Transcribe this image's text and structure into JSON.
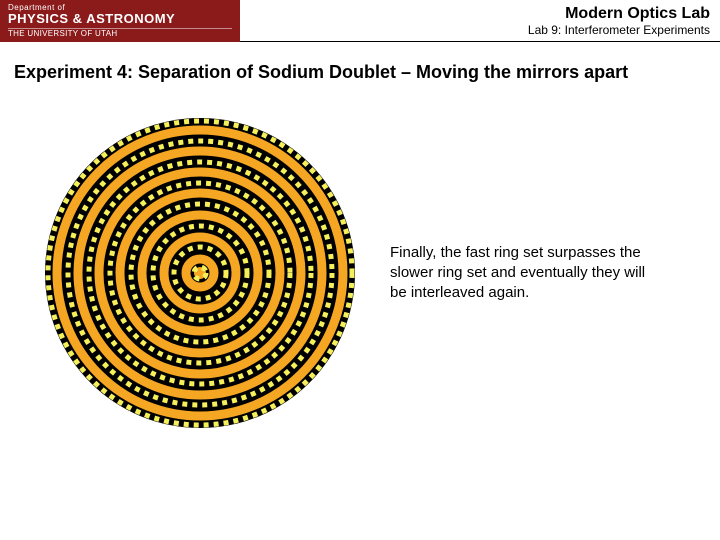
{
  "header": {
    "logo_dept": "Department of",
    "logo_main": "PHYSICS & ASTRONOMY",
    "logo_uni": "THE UNIVERSITY OF UTAH",
    "lab_title": "Modern Optics Lab",
    "lab_sub": "Lab 9: Interferometer Experiments"
  },
  "slide": {
    "title": "Experiment 4: Separation of Sodium Doublet – Moving the mirrors apart",
    "description": "Finally, the fast ring set surpasses the slower ring set and eventually they will be interleaved again."
  },
  "diagram": {
    "type": "interference-rings",
    "size": 320,
    "background_color": "#000000",
    "disc_radius": 155,
    "solid_rings": {
      "color": "#f5a623",
      "stroke_width": 9,
      "radii": [
        14,
        36,
        58,
        80,
        101,
        122,
        143
      ]
    },
    "dotted_rings": {
      "color": "#f5f05a",
      "stroke_width": 5,
      "dash": "5,5",
      "radii": [
        6,
        26,
        47,
        69,
        90,
        111,
        132,
        152
      ]
    },
    "center_dot": {
      "color": "#f5a623",
      "radius": 6
    }
  },
  "colors": {
    "logo_bg": "#8b1a1a",
    "text": "#000000"
  }
}
